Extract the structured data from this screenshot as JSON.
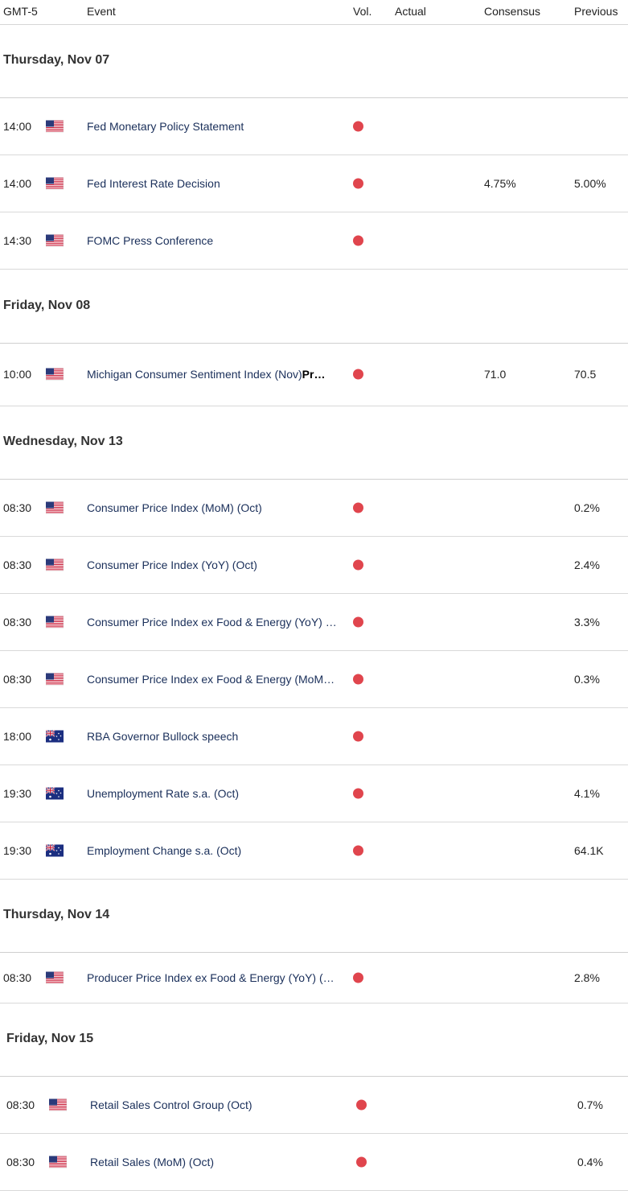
{
  "header": {
    "timezone": "GMT-5",
    "event": "Event",
    "vol": "Vol.",
    "actual": "Actual",
    "consensus": "Consensus",
    "previous": "Previous"
  },
  "colors": {
    "volatility_dot": "#e0454d",
    "event_text": "#1a2f5a"
  },
  "days": [
    {
      "label": "Thursday, Nov 07",
      "events": [
        {
          "time": "14:00",
          "flag": "us-flag-icon",
          "name": "Fed Monetary Policy Statement",
          "actual": "",
          "consensus": "",
          "previous": ""
        },
        {
          "time": "14:00",
          "flag": "us-flag-icon",
          "name": "Fed Interest Rate Decision",
          "actual": "",
          "consensus": "4.75%",
          "previous": "5.00%"
        },
        {
          "time": "14:30",
          "flag": "us-flag-icon",
          "name": "FOMC Press Conference",
          "actual": "",
          "consensus": "",
          "previous": ""
        }
      ]
    },
    {
      "label": "Friday, Nov 08",
      "events": [
        {
          "time": "10:00",
          "flag": "us-flag-icon",
          "name": "Michigan Consumer Sentiment Index (Nov)",
          "name_suffix": "Pr…",
          "actual": "",
          "consensus": "71.0",
          "previous": "70.5"
        }
      ]
    },
    {
      "label": "Wednesday, Nov 13",
      "events": [
        {
          "time": "08:30",
          "flag": "us-flag-icon",
          "name": "Consumer Price Index (MoM) (Oct)",
          "actual": "",
          "consensus": "",
          "previous": "0.2%"
        },
        {
          "time": "08:30",
          "flag": "us-flag-icon",
          "name": "Consumer Price Index (YoY) (Oct)",
          "actual": "",
          "consensus": "",
          "previous": "2.4%"
        },
        {
          "time": "08:30",
          "flag": "us-flag-icon",
          "name": "Consumer Price Index ex Food & Energy (YoY) …",
          "actual": "",
          "consensus": "",
          "previous": "3.3%"
        },
        {
          "time": "08:30",
          "flag": "us-flag-icon",
          "name": "Consumer Price Index ex Food & Energy (MoM…",
          "actual": "",
          "consensus": "",
          "previous": "0.3%"
        },
        {
          "time": "18:00",
          "flag": "au-flag-icon",
          "name": "RBA Governor Bullock speech",
          "actual": "",
          "consensus": "",
          "previous": ""
        },
        {
          "time": "19:30",
          "flag": "au-flag-icon",
          "name": "Unemployment Rate s.a. (Oct)",
          "actual": "",
          "consensus": "",
          "previous": "4.1%"
        },
        {
          "time": "19:30",
          "flag": "au-flag-icon",
          "name": "Employment Change s.a. (Oct)",
          "actual": "",
          "consensus": "",
          "previous": "64.1K"
        }
      ]
    },
    {
      "label": "Thursday, Nov 14",
      "events": [
        {
          "time": "08:30",
          "flag": "us-flag-icon",
          "name": "Producer Price Index ex Food & Energy (YoY) (…",
          "actual": "",
          "consensus": "",
          "previous": "2.8%"
        }
      ]
    },
    {
      "label": "Friday, Nov 15",
      "events": [
        {
          "time": "08:30",
          "flag": "us-flag-icon",
          "name": "Retail Sales Control Group (Oct)",
          "actual": "",
          "consensus": "",
          "previous": "0.7%"
        },
        {
          "time": "08:30",
          "flag": "us-flag-icon",
          "name": "Retail Sales (MoM) (Oct)",
          "actual": "",
          "consensus": "",
          "previous": "0.4%"
        }
      ]
    }
  ]
}
